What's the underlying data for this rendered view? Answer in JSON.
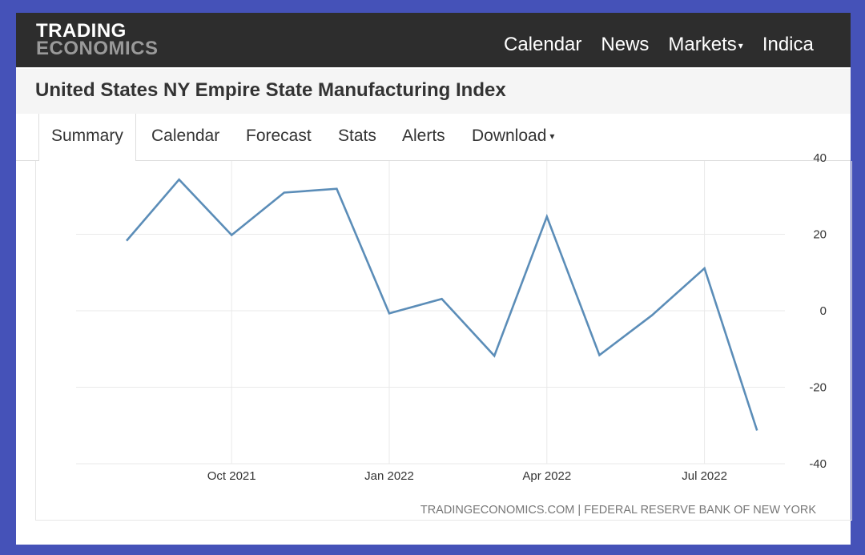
{
  "nav": {
    "logo_top": "TRADING",
    "logo_bottom": "ECONOMICS",
    "links": [
      "Calendar",
      "News",
      "Markets",
      "Indica"
    ]
  },
  "page": {
    "title": "United States NY Empire State Manufacturing Index"
  },
  "tabs": [
    "Summary",
    "Calendar",
    "Forecast",
    "Stats",
    "Alerts",
    "Download"
  ],
  "colors": {
    "line": "#5b8db8",
    "navbar": "#2d2d2d",
    "frame_border": "#4552b8"
  },
  "chart_data": {
    "type": "line",
    "x": [
      "Aug 2021",
      "Sep 2021",
      "Oct 2021",
      "Nov 2021",
      "Dec 2021",
      "Jan 2022",
      "Feb 2022",
      "Mar 2022",
      "Apr 2022",
      "May 2022",
      "Jun 2022",
      "Jul 2022",
      "Aug 2022"
    ],
    "series": [
      {
        "values": [
          18.3,
          34.3,
          19.8,
          30.9,
          31.9,
          -0.7,
          3.1,
          -11.8,
          24.6,
          -11.6,
          -1.2,
          11.1,
          -31.3
        ]
      }
    ],
    "xticks": [
      "Oct 2021",
      "Jan 2022",
      "Apr 2022",
      "Jul 2022"
    ],
    "yticks": [
      40,
      20,
      0,
      -20,
      -40
    ],
    "ylim": [
      -40,
      40
    ],
    "grid": true,
    "source": "TRADINGECONOMICS.COM | FEDERAL RESERVE BANK OF NEW YORK"
  }
}
